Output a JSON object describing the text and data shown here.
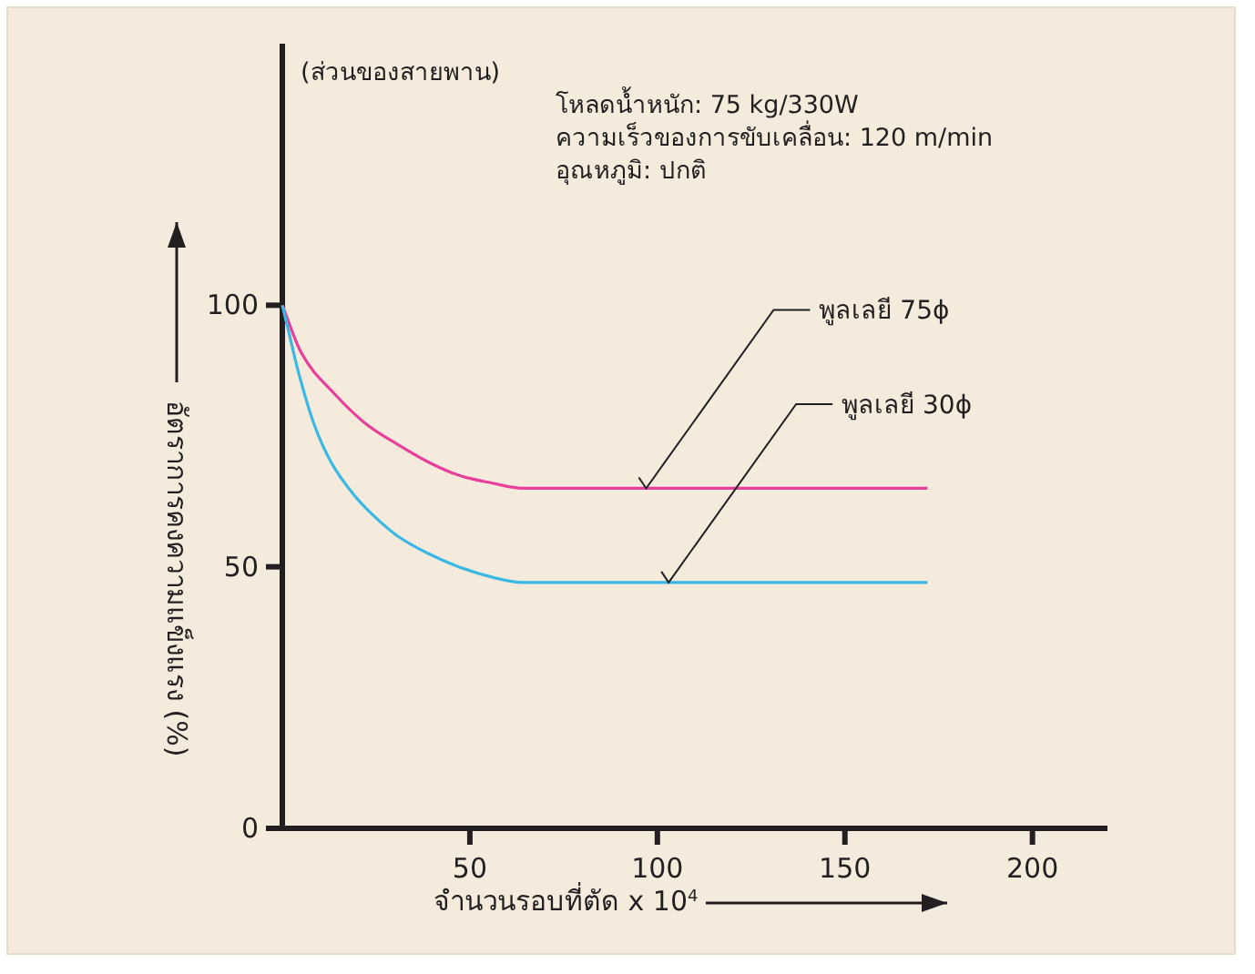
{
  "chart_data": {
    "type": "line",
    "xlabel": "จำนวนรอบที่ตัด x 10$^{4}$",
    "ylabel": "อัตราการคงความแข็งแรง (%)",
    "xlim": [
      0,
      220
    ],
    "ylim": [
      0,
      150
    ],
    "xticks": [
      50,
      100,
      150,
      200
    ],
    "yticks": [
      0,
      50,
      100
    ],
    "grid": false,
    "marker": "none",
    "line_style": "solid",
    "series": [
      {
        "color": "#e8409a",
        "x": [
          0,
          5,
          14,
          22,
          30.5,
          39,
          47,
          56,
          64,
          80,
          100,
          130,
          172
        ],
        "values": [
          100,
          91,
          83,
          77.5,
          73.5,
          70,
          67.5,
          66,
          65,
          65,
          65,
          65,
          65
        ]
      },
      {
        "color": "#3ab8e4",
        "x": [
          0,
          2,
          4,
          8.6,
          13,
          18.8,
          24,
          30.5,
          39,
          47,
          56,
          64,
          80,
          100,
          130,
          172
        ],
        "values": [
          100,
          94,
          88,
          77,
          70,
          64,
          60,
          56,
          52.5,
          50,
          48,
          47,
          47,
          47,
          47,
          47
        ]
      }
    ],
    "annotations": [
      "(ส่วนของสายพาน)",
      "โหลดน้ำหนัก: 75 kg/330W",
      "ความเร็วของการขับเคลื่อน: 120 m/min",
      "อุณหภูมิ: ปกติ",
      {
        "text": "พูลเลยี 75ϕ",
        "x": 97,
        "y": 65
      },
      {
        "text": "พูลเลยี 30ϕ",
        "x": 103,
        "y": 47
      }
    ]
  }
}
